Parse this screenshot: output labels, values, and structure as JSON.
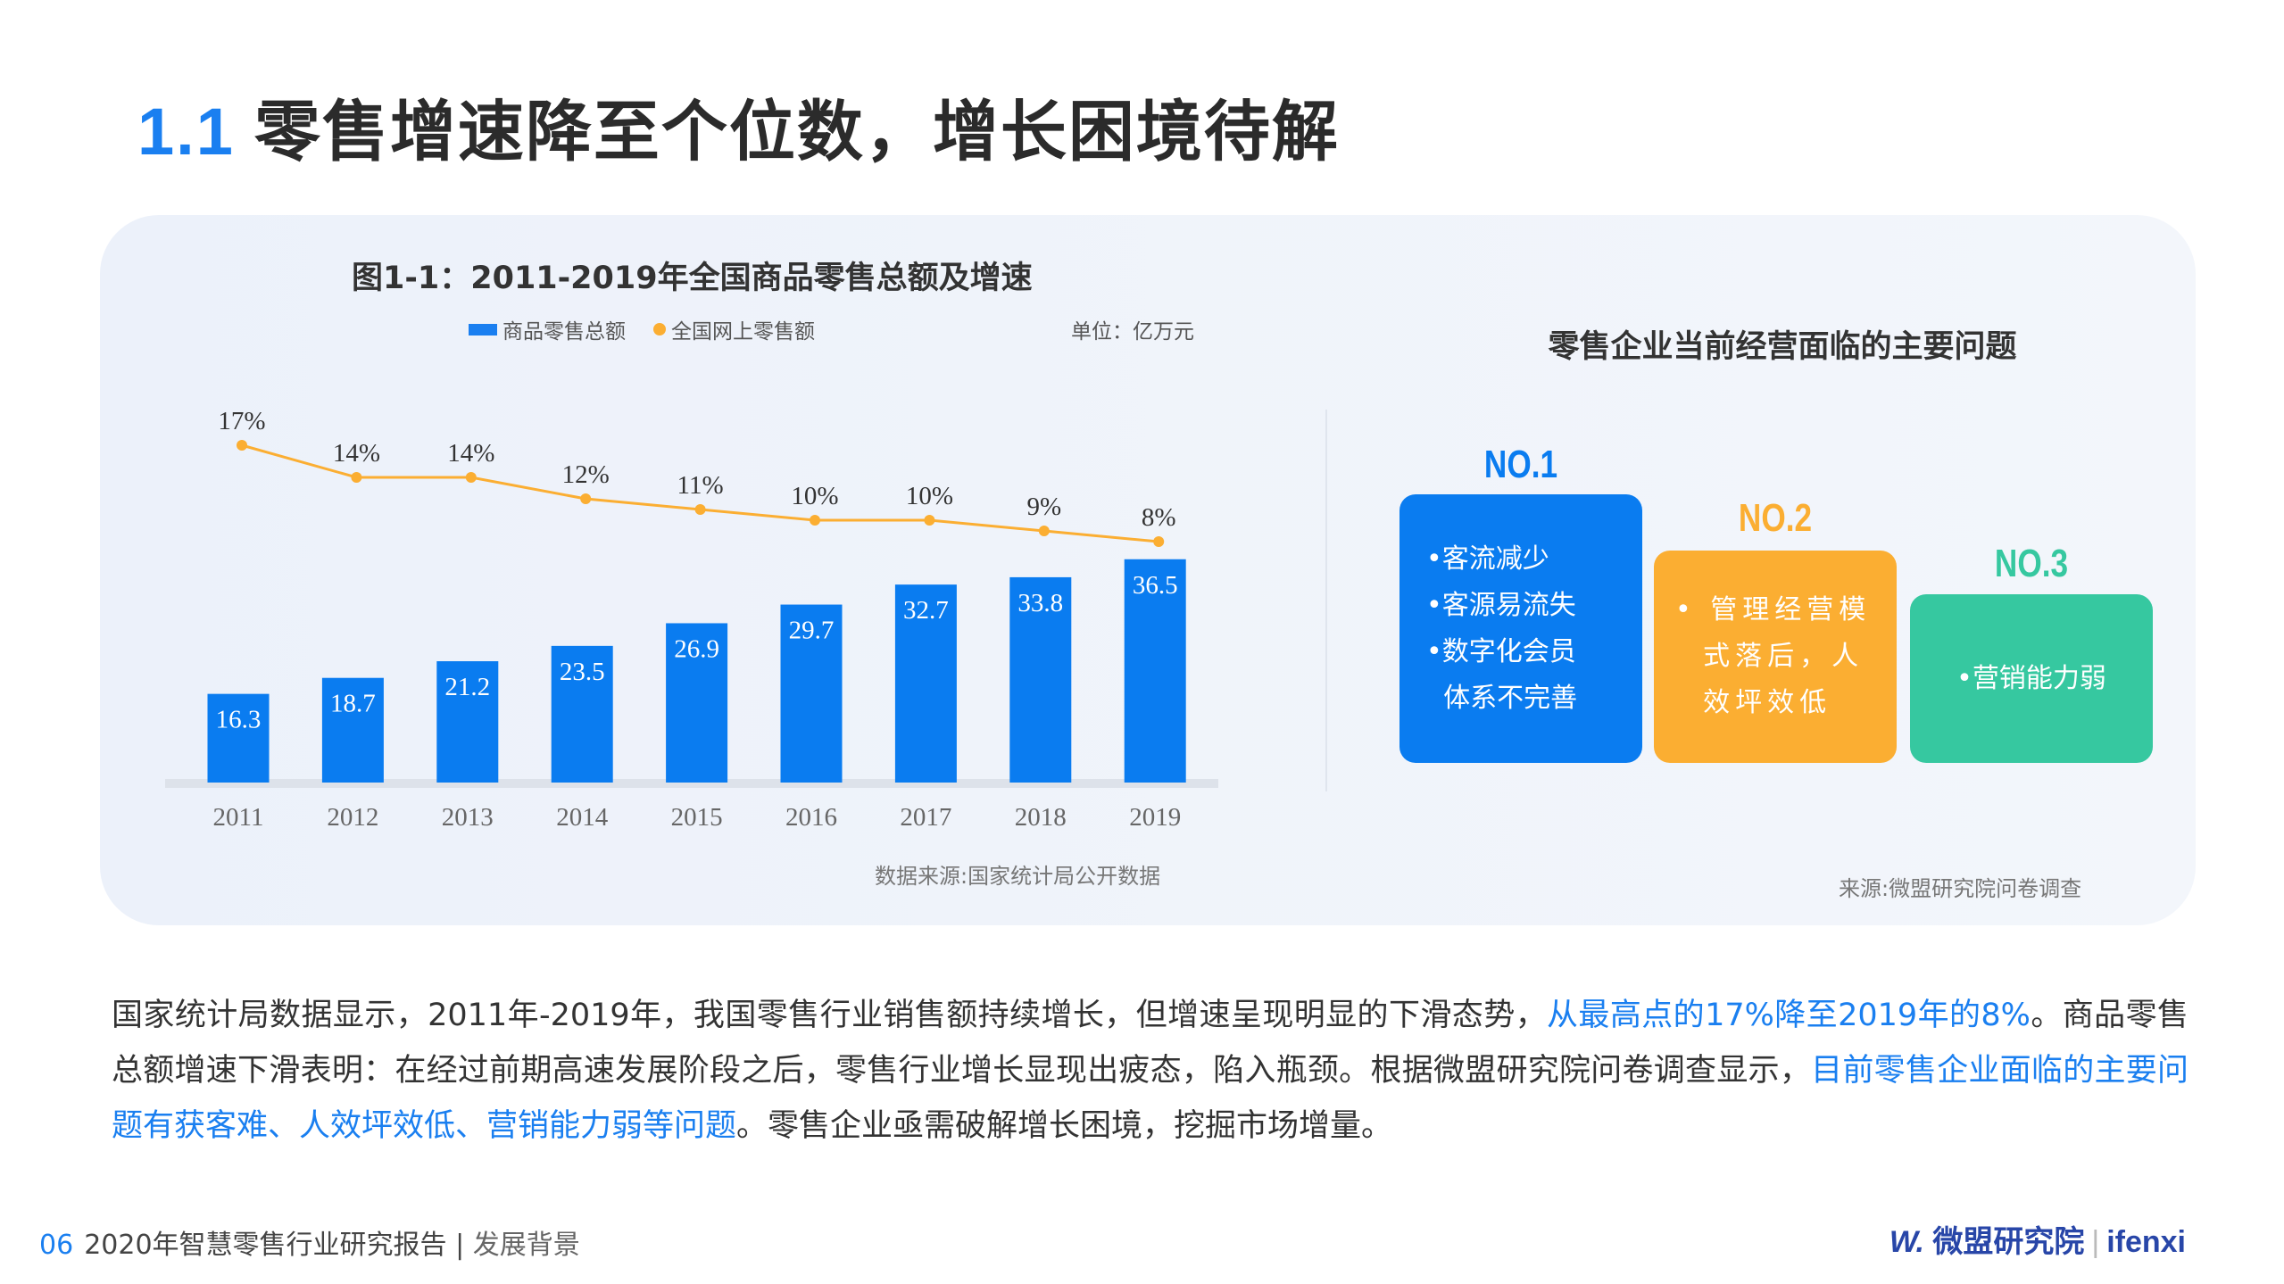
{
  "header": {
    "section_number": "1.1",
    "title": "零售增速降至个位数，增长困境待解"
  },
  "colors": {
    "accent_blue": "#1a7ff0",
    "orange": "#fbae32",
    "green": "#36c8a0"
  },
  "chart_data": {
    "type": "bar",
    "title": "图1-1：2011-2019年全国商品零售总额及增速",
    "unit": "单位：亿万元",
    "legend": [
      "商品零售总额",
      "全国网上零售额"
    ],
    "legend_placement": "top",
    "categories": [
      "2011",
      "2012",
      "2013",
      "2014",
      "2015",
      "2016",
      "2017",
      "2018",
      "2019"
    ],
    "series": [
      {
        "name": "商品零售总额",
        "type": "bar",
        "values": [
          16.3,
          18.7,
          21.2,
          23.5,
          26.9,
          29.7,
          32.7,
          33.8,
          36.5
        ]
      },
      {
        "name": "全国网上零售额",
        "type": "line",
        "values": [
          17,
          14,
          14,
          12,
          11,
          10,
          10,
          9,
          8
        ],
        "labels": [
          "17%",
          "14%",
          "14%",
          "12%",
          "11%",
          "10%",
          "10%",
          "9%",
          "8%"
        ]
      }
    ],
    "grid": false,
    "source": "数据来源:国家统计局公开数据"
  },
  "problems": {
    "title": "零售企业当前经营面临的主要问题",
    "cards": [
      {
        "rank": "NO.1",
        "items": [
          "•客流减少",
          "•客源易流失",
          "•数字化会员",
          "  体系不完善"
        ]
      },
      {
        "rank": "NO.2",
        "items": [
          "• 管理经营模",
          "  式落后，人",
          "  效坪效低"
        ]
      },
      {
        "rank": "NO.3",
        "items": [
          "•营销能力弱"
        ]
      }
    ],
    "source": "来源:微盟研究院问卷调查"
  },
  "paragraph": {
    "p1": "国家统计局数据显示，2011年-2019年，我国零售行业销售额持续增长，但增速呈现明显的下滑态势，",
    "h1": "从最高点的17%降至2019年的8%",
    "p2": "。商品零售总额增速下滑表明：在经过前期高速发展阶段之后，零售行业增长显现出疲态，陷入瓶颈。根据微盟研究院问卷调查显示，",
    "h2": "目前零售企业面临的主要问题有获客难、人效坪效低、营销能力弱等问题",
    "p3": "。零售企业亟需破解增长困境，挖掘市场增量。"
  },
  "footer": {
    "page": "06",
    "report": "2020年智慧零售行业研究报告",
    "sep": "|",
    "section": "发展背景"
  },
  "logo": {
    "brand": "微盟研究院",
    "partner": "ifenxi"
  }
}
